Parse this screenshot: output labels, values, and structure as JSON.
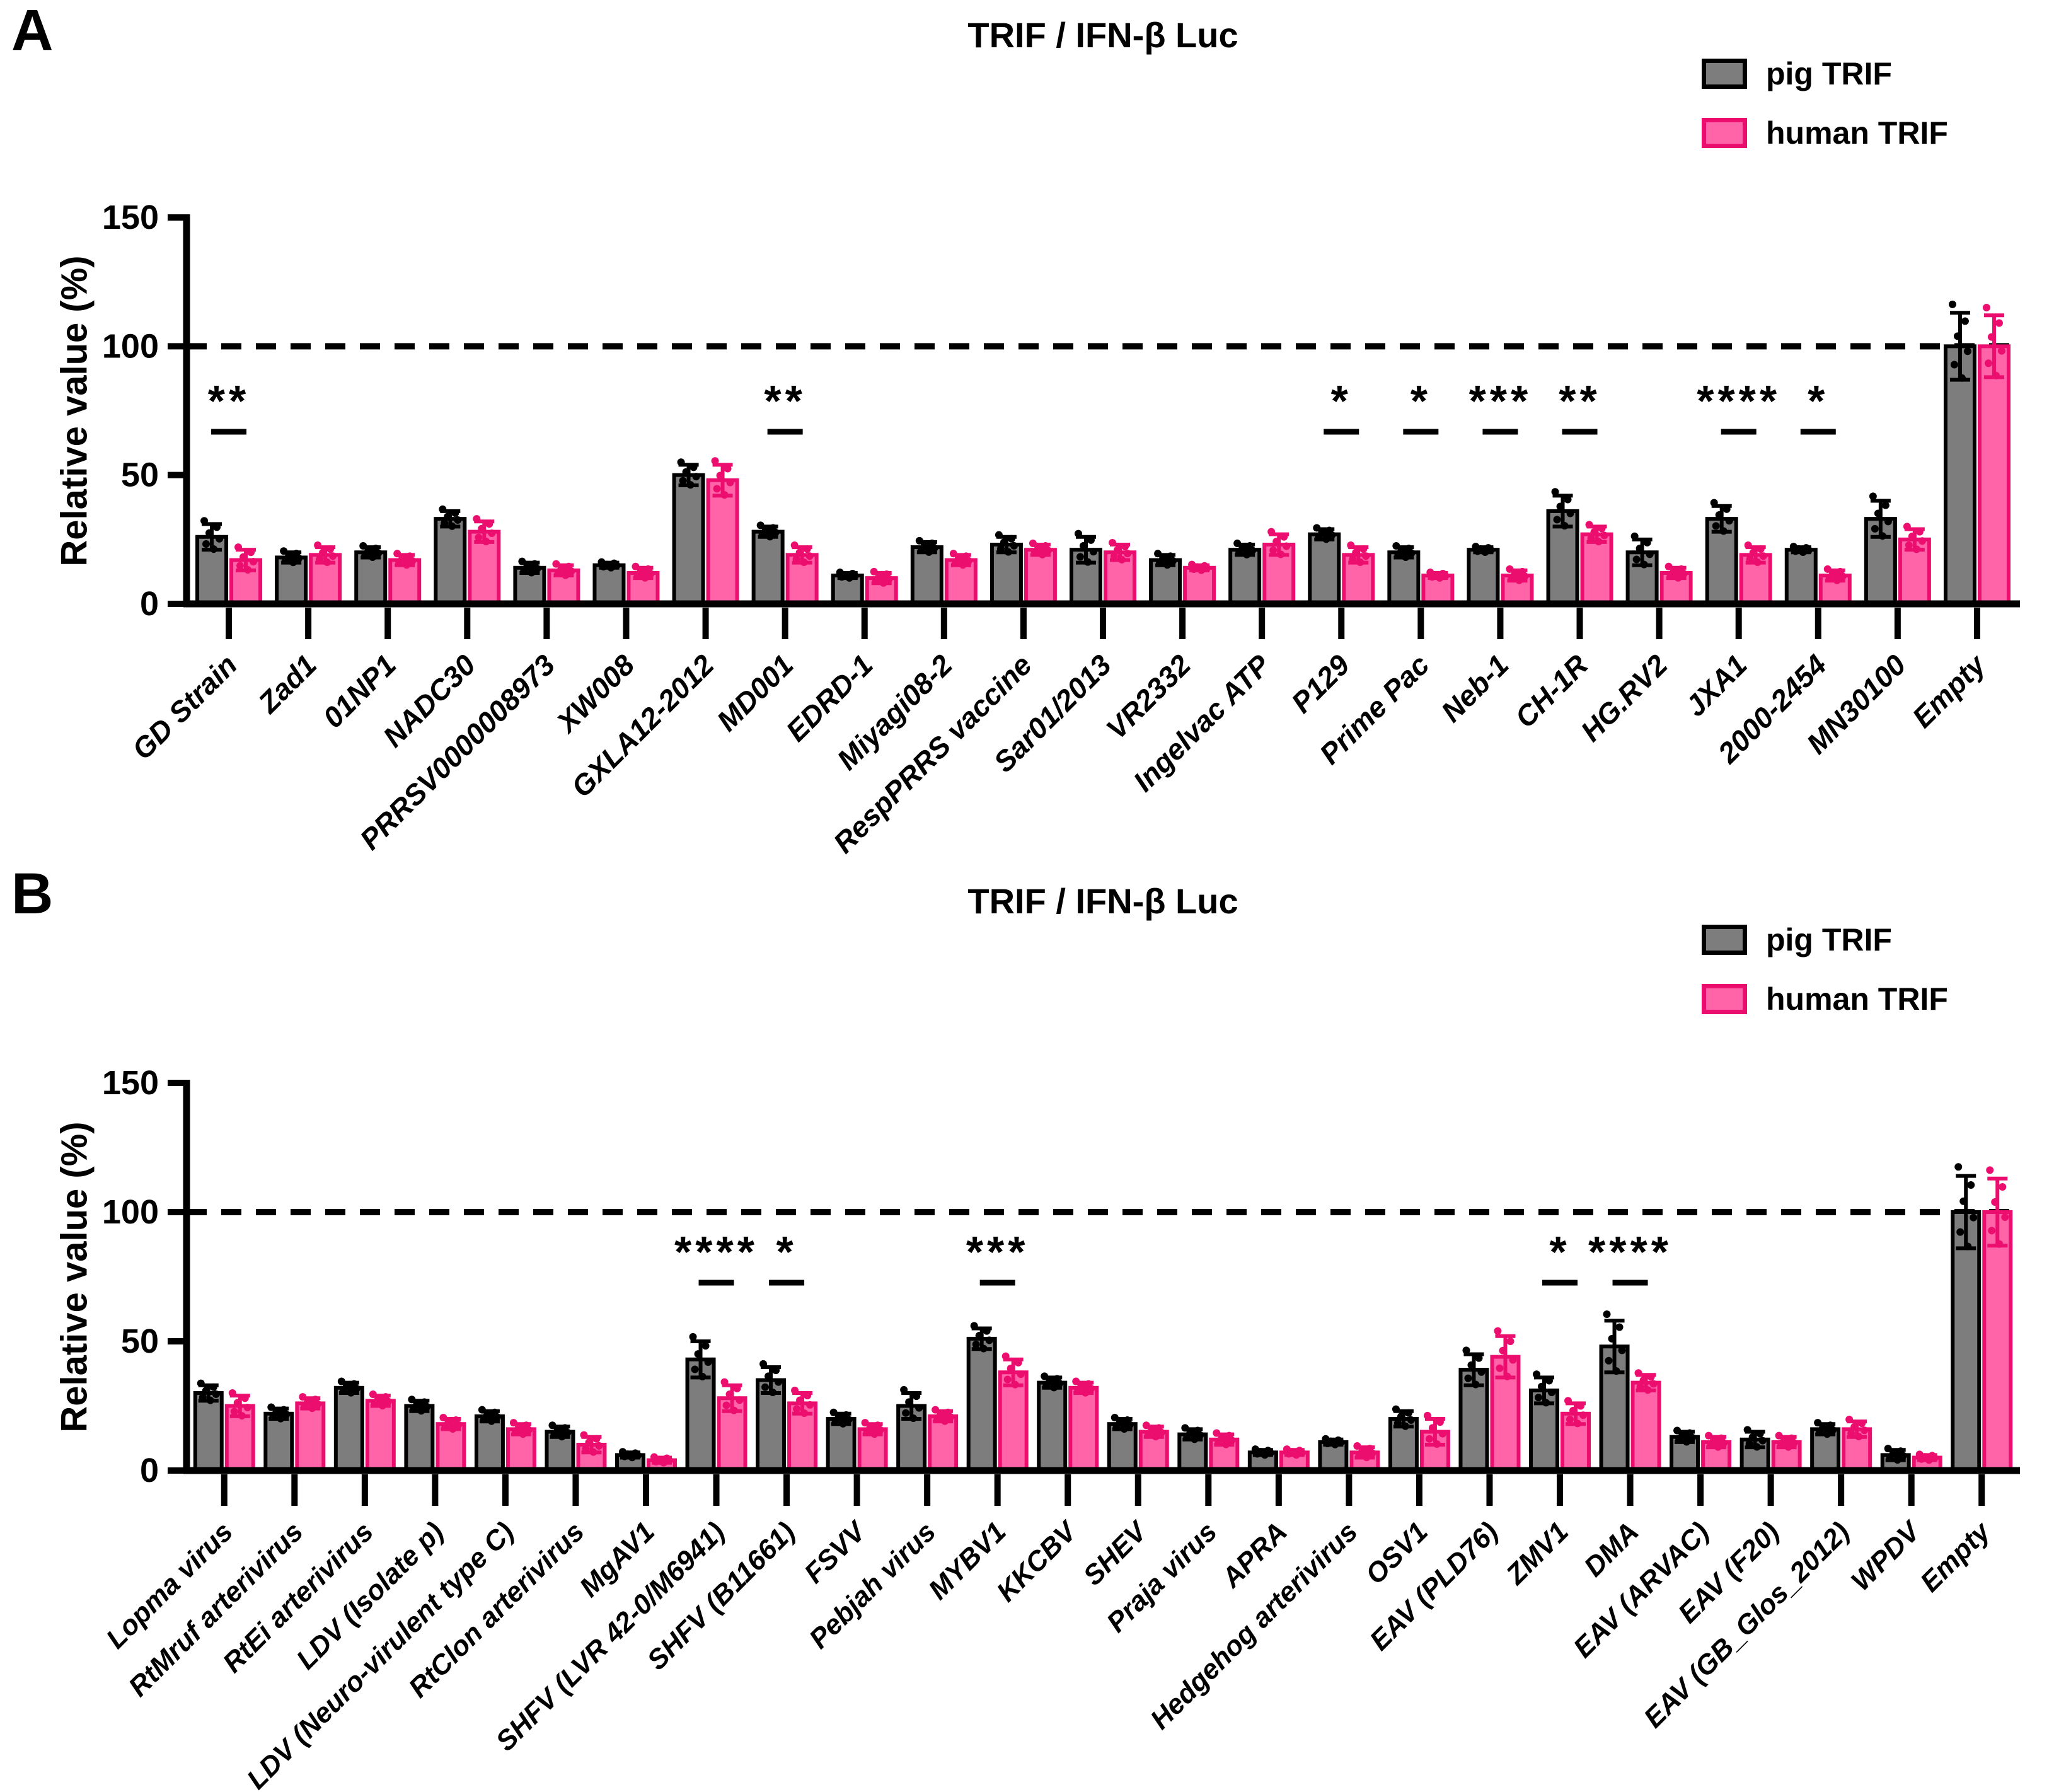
{
  "figure": {
    "panels": [
      {
        "letter": "A",
        "title": "TRIF / IFN-β Luc",
        "ylabel": "Relative value (%)"
      },
      {
        "letter": "B",
        "title": "TRIF / IFN-β Luc",
        "ylabel": "Relative value (%)"
      }
    ],
    "legend": {
      "items": [
        {
          "label": "pig TRIF",
          "key": "pig"
        },
        {
          "label": "human TRIF",
          "key": "human"
        }
      ]
    }
  },
  "colors": {
    "pig_fill": "#7d7d7d",
    "pig_stroke": "#000000",
    "human_fill": "#ff64a8",
    "human_stroke": "#ec0e6f",
    "axis": "#000000",
    "reference_line": "#000000"
  },
  "chart_data": [
    {
      "type": "bar",
      "title": "TRIF / IFN-β Luc",
      "xlabel": "",
      "ylabel": "Relative value (%)",
      "ylim": [
        0,
        150
      ],
      "yticks": [
        0,
        50,
        100,
        150
      ],
      "reference_line": 100,
      "grid": false,
      "legend_position": "top-right",
      "categories": [
        "GD Strain",
        "Zad1",
        "01NP1",
        "NADC30",
        "PRRSV0000008973",
        "XW008",
        "GXLA12-2012",
        "MD001",
        "EDRD-1",
        "Miyagi08-2",
        "RespPRRS vaccine",
        "Sar01/2013",
        "VR2332",
        "Ingelvac ATP",
        "P129",
        "Prime Pac",
        "Neb-1",
        "CH-1R",
        "HG.RV2",
        "JXA1",
        "2000-2454",
        "MN30100",
        "Empty"
      ],
      "series": [
        {
          "name": "pig TRIF",
          "values": [
            26,
            18,
            20,
            33,
            14,
            15,
            50,
            28,
            11,
            22,
            23,
            21,
            17,
            21,
            27,
            20,
            21,
            36,
            20,
            33,
            21,
            33,
            100
          ],
          "errors": [
            5,
            2,
            2,
            3,
            2,
            1,
            4,
            2,
            1,
            2,
            3,
            5,
            2,
            2,
            2,
            2,
            1,
            6,
            5,
            5,
            1,
            7,
            13
          ]
        },
        {
          "name": "human TRIF",
          "values": [
            17,
            19,
            17,
            28,
            13,
            12,
            48,
            19,
            10,
            17,
            21,
            20,
            14,
            23,
            19,
            11,
            11,
            27,
            12,
            19,
            11,
            25,
            100
          ],
          "errors": [
            4,
            3,
            2,
            4,
            2,
            2,
            6,
            3,
            2,
            2,
            2,
            3,
            1,
            4,
            3,
            1,
            2,
            3,
            2,
            3,
            2,
            4,
            12
          ]
        }
      ],
      "significance": [
        {
          "category": "GD Strain",
          "stars": "**"
        },
        {
          "category": "MD001",
          "stars": "**"
        },
        {
          "category": "P129",
          "stars": "*"
        },
        {
          "category": "Prime Pac",
          "stars": "*"
        },
        {
          "category": "Neb-1",
          "stars": "***"
        },
        {
          "category": "CH-1R",
          "stars": "**"
        },
        {
          "category": "JXA1",
          "stars": "****"
        },
        {
          "category": "2000-2454",
          "stars": "*"
        }
      ]
    },
    {
      "type": "bar",
      "title": "TRIF / IFN-β Luc",
      "xlabel": "",
      "ylabel": "Relative value (%)",
      "ylim": [
        0,
        150
      ],
      "yticks": [
        0,
        50,
        100,
        150
      ],
      "reference_line": 100,
      "grid": false,
      "legend_position": "top-right",
      "categories": [
        "Lopma virus",
        "RtMruf arterivirus",
        "RtEi arterivirus",
        "LDV (Isolate p)",
        "LDV (Neuro-virulent type C)",
        "RtClon arterivirus",
        "MgAV1",
        "SHFV (LVR 42-0/M6941)",
        "SHFV (B11661)",
        "FSVV",
        "Pebjah virus",
        "MYBV1",
        "KKCBV",
        "SHEV",
        "Praja virus",
        "APRA",
        "Hedgehog arterivirus",
        "OSV1",
        "EAV (PLD76)",
        "ZMV1",
        "DMA",
        "EAV (ARVAC)",
        "EAV (F20)",
        "EAV (GB_Glos_2012)",
        "WPDV",
        "Empty"
      ],
      "series": [
        {
          "name": "pig TRIF",
          "values": [
            30,
            22,
            32,
            25,
            21,
            15,
            6,
            43,
            35,
            20,
            25,
            51,
            34,
            18,
            14,
            7,
            11,
            20,
            39,
            31,
            48,
            13,
            12,
            16,
            6,
            100
          ],
          "errors": [
            3,
            2,
            2,
            2,
            2,
            2,
            1,
            7,
            5,
            2,
            5,
            4,
            2,
            2,
            2,
            1,
            1,
            3,
            6,
            5,
            10,
            2,
            3,
            2,
            2,
            14
          ]
        },
        {
          "name": "human TRIF",
          "values": [
            25,
            26,
            27,
            18,
            16,
            10,
            4,
            28,
            26,
            16,
            21,
            38,
            32,
            15,
            12,
            7,
            7,
            15,
            44,
            22,
            34,
            11,
            11,
            16,
            5,
            100
          ],
          "errors": [
            4,
            2,
            2,
            2,
            2,
            3,
            1,
            5,
            4,
            2,
            2,
            5,
            2,
            2,
            2,
            1,
            2,
            5,
            8,
            4,
            3,
            2,
            2,
            3,
            1,
            13
          ]
        }
      ],
      "significance": [
        {
          "category": "SHFV (LVR 42-0/M6941)",
          "stars": "****"
        },
        {
          "category": "SHFV (B11661)",
          "stars": "*"
        },
        {
          "category": "MYBV1",
          "stars": "***"
        },
        {
          "category": "ZMV1",
          "stars": "*"
        },
        {
          "category": "DMA",
          "stars": "****"
        }
      ]
    }
  ]
}
